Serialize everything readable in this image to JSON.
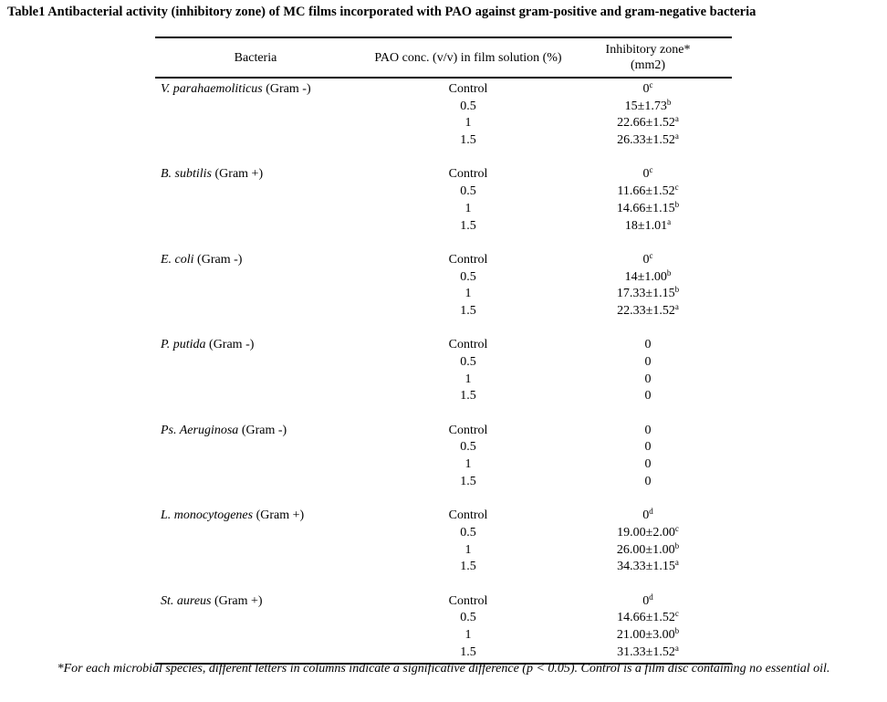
{
  "title": "Table1 Antibacterial activity (inhibitory zone) of MC films incorporated with PAO against gram-positive and gram-negative bacteria",
  "headers": {
    "bacteria": "Bacteria",
    "conc": "PAO conc. (v/v) in film solution (%)",
    "zone_line1": "Inhibitory zone*",
    "zone_line2": "(mm2)"
  },
  "groups": [
    {
      "name": "V. parahaemoliticus",
      "gram": " (Gram -)",
      "rows": [
        {
          "conc": "Control",
          "value": "0",
          "sup": "c"
        },
        {
          "conc": "0.5",
          "value": "15±1.73",
          "sup": "b"
        },
        {
          "conc": "1",
          "value": "22.66±1.52",
          "sup": "a"
        },
        {
          "conc": "1.5",
          "value": "26.33±1.52",
          "sup": "a"
        }
      ]
    },
    {
      "name": "B. subtilis",
      "gram": " (Gram +)",
      "rows": [
        {
          "conc": "Control",
          "value": "0",
          "sup": "c"
        },
        {
          "conc": "0.5",
          "value": "11.66±1.52",
          "sup": "c"
        },
        {
          "conc": "1",
          "value": "14.66±1.15",
          "sup": "b"
        },
        {
          "conc": "1.5",
          "value": "18±1.01",
          "sup": "a"
        }
      ]
    },
    {
      "name": "E. coli",
      "gram": " (Gram -)",
      "rows": [
        {
          "conc": "Control",
          "value": "0",
          "sup": "c"
        },
        {
          "conc": "0.5",
          "value": "14±1.00",
          "sup": "b"
        },
        {
          "conc": "1",
          "value": "17.33±1.15",
          "sup": "b"
        },
        {
          "conc": "1.5",
          "value": "22.33±1.52",
          "sup": "a"
        }
      ]
    },
    {
      "name": "P. putida",
      "gram": " (Gram -)",
      "rows": [
        {
          "conc": "Control",
          "value": "0",
          "sup": ""
        },
        {
          "conc": "0.5",
          "value": "0",
          "sup": ""
        },
        {
          "conc": "1",
          "value": "0",
          "sup": ""
        },
        {
          "conc": "1.5",
          "value": "0",
          "sup": ""
        }
      ]
    },
    {
      "name": "Ps. Aeruginosa",
      "gram": " (Gram -)",
      "rows": [
        {
          "conc": "Control",
          "value": "0",
          "sup": ""
        },
        {
          "conc": "0.5",
          "value": "0",
          "sup": ""
        },
        {
          "conc": "1",
          "value": "0",
          "sup": ""
        },
        {
          "conc": "1.5",
          "value": "0",
          "sup": ""
        }
      ]
    },
    {
      "name": "L. monocytogenes",
      "gram": " (Gram +)",
      "rows": [
        {
          "conc": "Control",
          "value": "0",
          "sup": "d"
        },
        {
          "conc": "0.5",
          "value": "19.00±2.00",
          "sup": "c"
        },
        {
          "conc": "1",
          "value": "26.00±1.00",
          "sup": "b"
        },
        {
          "conc": "1.5",
          "value": "34.33±1.15",
          "sup": "a"
        }
      ]
    },
    {
      "name": "St. aureus",
      "gram": " (Gram +)",
      "rows": [
        {
          "conc": "Control",
          "value": "0",
          "sup": "d"
        },
        {
          "conc": "0.5",
          "value": "14.66±1.52",
          "sup": "c"
        },
        {
          "conc": "1",
          "value": "21.00±3.00",
          "sup": "b"
        },
        {
          "conc": "1.5",
          "value": "31.33±1.52",
          "sup": "a"
        }
      ]
    }
  ],
  "footnote": "*For each microbial species, different letters in columns indicate a significative difference (p < 0.05). Control is a film disc containing no essential oil."
}
